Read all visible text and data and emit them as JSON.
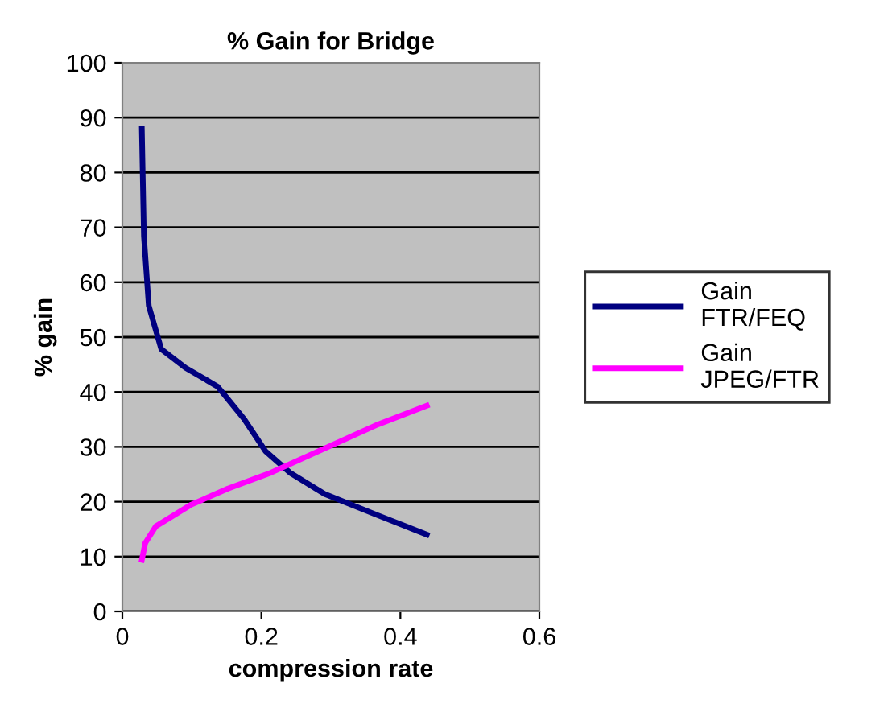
{
  "chart_data": {
    "type": "line",
    "title": "% Gain for Bridge",
    "xlabel": "compression rate",
    "ylabel": "% gain",
    "series": [
      {
        "name": "Gain\nFTR/FEQ",
        "color": "#000080",
        "x": [
          0.028,
          0.031,
          0.038,
          0.056,
          0.091,
          0.137,
          0.175,
          0.206,
          0.241,
          0.291,
          0.368,
          0.438
        ],
        "values": [
          88,
          68.4,
          55.7,
          47.8,
          44.4,
          41,
          35.1,
          29.2,
          25.3,
          21.4,
          17.5,
          14
        ]
      },
      {
        "name": "Gain\nJPEG/FTR",
        "color": "#ff00ff",
        "x": [
          0.028,
          0.033,
          0.048,
          0.098,
          0.152,
          0.214,
          0.291,
          0.368,
          0.438
        ],
        "values": [
          9.4,
          12.5,
          15.5,
          19.4,
          22.4,
          25.3,
          29.7,
          34.1,
          37.5
        ]
      }
    ],
    "xlim": [
      0,
      0.6
    ],
    "xticks": [
      0,
      0.2,
      0.4,
      0.6
    ],
    "ylim": [
      0,
      100
    ],
    "yticks": [
      0,
      10,
      20,
      30,
      40,
      50,
      60,
      70,
      80,
      90,
      100
    ],
    "grid": "y",
    "legend": "right",
    "marker": "none",
    "line_style": "solid"
  }
}
